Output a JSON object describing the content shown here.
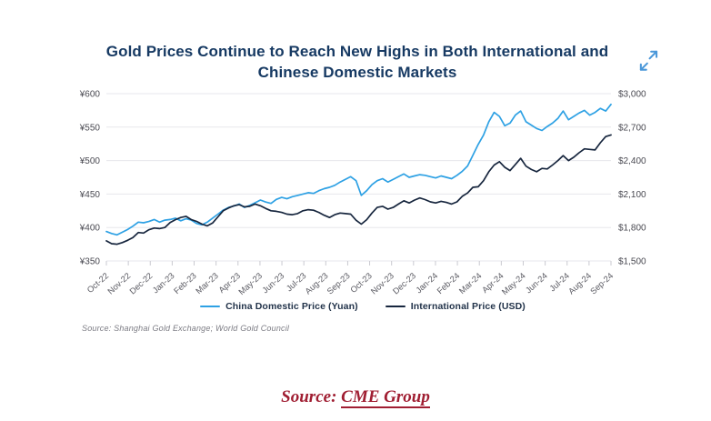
{
  "chart_data": {
    "type": "line",
    "title": "Gold Prices Continue to Reach New Highs in Both International and Chinese Domestic Markets",
    "source_note": "Source: Shanghai Gold Exchange; World Gold Council",
    "grid": "horizontal",
    "legend_position": "bottom",
    "points_per_month": 4,
    "x_tick_labels": [
      "Oct-22",
      "Nov-22",
      "Dec-22",
      "Jan-23",
      "Feb-23",
      "Mar-23",
      "Apr-23",
      "May-23",
      "Jun-23",
      "Jul-23",
      "Aug-23",
      "Sep-23",
      "Oct-23",
      "Nov-23",
      "Dec-23",
      "Jan-24",
      "Feb-24",
      "Mar-24",
      "Apr-24",
      "May-24",
      "Jun-24",
      "Jul-24",
      "Aug-24",
      "Sep-24"
    ],
    "left_axis": {
      "labels": [
        "¥600",
        "¥550",
        "¥500",
        "¥450",
        "¥400",
        "¥350"
      ],
      "min": 350,
      "max": 600
    },
    "right_axis": {
      "labels": [
        "$3,000",
        "$2,700",
        "$2,400",
        "$2,100",
        "$1,800",
        "$1,500"
      ],
      "min": 1500,
      "max": 3000
    },
    "series": [
      {
        "name": "China Domestic Price (Yuan)",
        "axis": "left",
        "color": "#2EA1E4",
        "values": [
          394,
          391,
          389,
          393,
          397,
          402,
          408,
          407,
          409,
          412,
          408,
          411,
          412,
          414,
          410,
          413,
          411,
          406,
          404,
          408,
          414,
          420,
          426,
          430,
          432,
          435,
          430,
          433,
          437,
          441,
          438,
          436,
          442,
          445,
          443,
          446,
          448,
          450,
          452,
          451,
          455,
          458,
          460,
          463,
          468,
          472,
          476,
          470,
          448,
          455,
          464,
          470,
          473,
          468,
          472,
          476,
          480,
          475,
          477,
          479,
          478,
          476,
          474,
          477,
          475,
          473,
          478,
          484,
          492,
          508,
          524,
          538,
          558,
          572,
          566,
          552,
          556,
          568,
          574,
          558,
          553,
          548,
          545,
          551,
          556,
          563,
          574,
          561,
          566,
          571,
          575,
          568,
          572,
          578,
          574,
          584
        ]
      },
      {
        "name": "International Price (USD)",
        "axis": "right",
        "color": "#17263E",
        "values": [
          1680,
          1655,
          1650,
          1665,
          1685,
          1710,
          1755,
          1750,
          1780,
          1795,
          1790,
          1800,
          1845,
          1870,
          1890,
          1900,
          1870,
          1855,
          1830,
          1815,
          1840,
          1895,
          1950,
          1975,
          1995,
          2005,
          1985,
          1990,
          2010,
          1995,
          1970,
          1950,
          1945,
          1935,
          1920,
          1915,
          1925,
          1950,
          1960,
          1955,
          1935,
          1910,
          1890,
          1915,
          1930,
          1925,
          1920,
          1865,
          1830,
          1870,
          1930,
          1980,
          1990,
          1965,
          1980,
          2010,
          2040,
          2020,
          2045,
          2065,
          2050,
          2030,
          2020,
          2035,
          2025,
          2010,
          2030,
          2080,
          2110,
          2160,
          2165,
          2220,
          2300,
          2360,
          2390,
          2340,
          2310,
          2365,
          2420,
          2350,
          2320,
          2300,
          2330,
          2325,
          2360,
          2400,
          2445,
          2400,
          2430,
          2470,
          2505,
          2500,
          2495,
          2560,
          2615,
          2630
        ]
      }
    ]
  },
  "colors": {
    "title": "#173A63",
    "caption": "#A01E32",
    "grid": "#e7e7ec",
    "axis_text": "#4a4a52",
    "background": "#ffffff"
  },
  "icons": {
    "expand": "expand-diagonal-arrows-icon"
  },
  "caption": {
    "prefix": "Source: ",
    "link_text": "CME Group"
  }
}
